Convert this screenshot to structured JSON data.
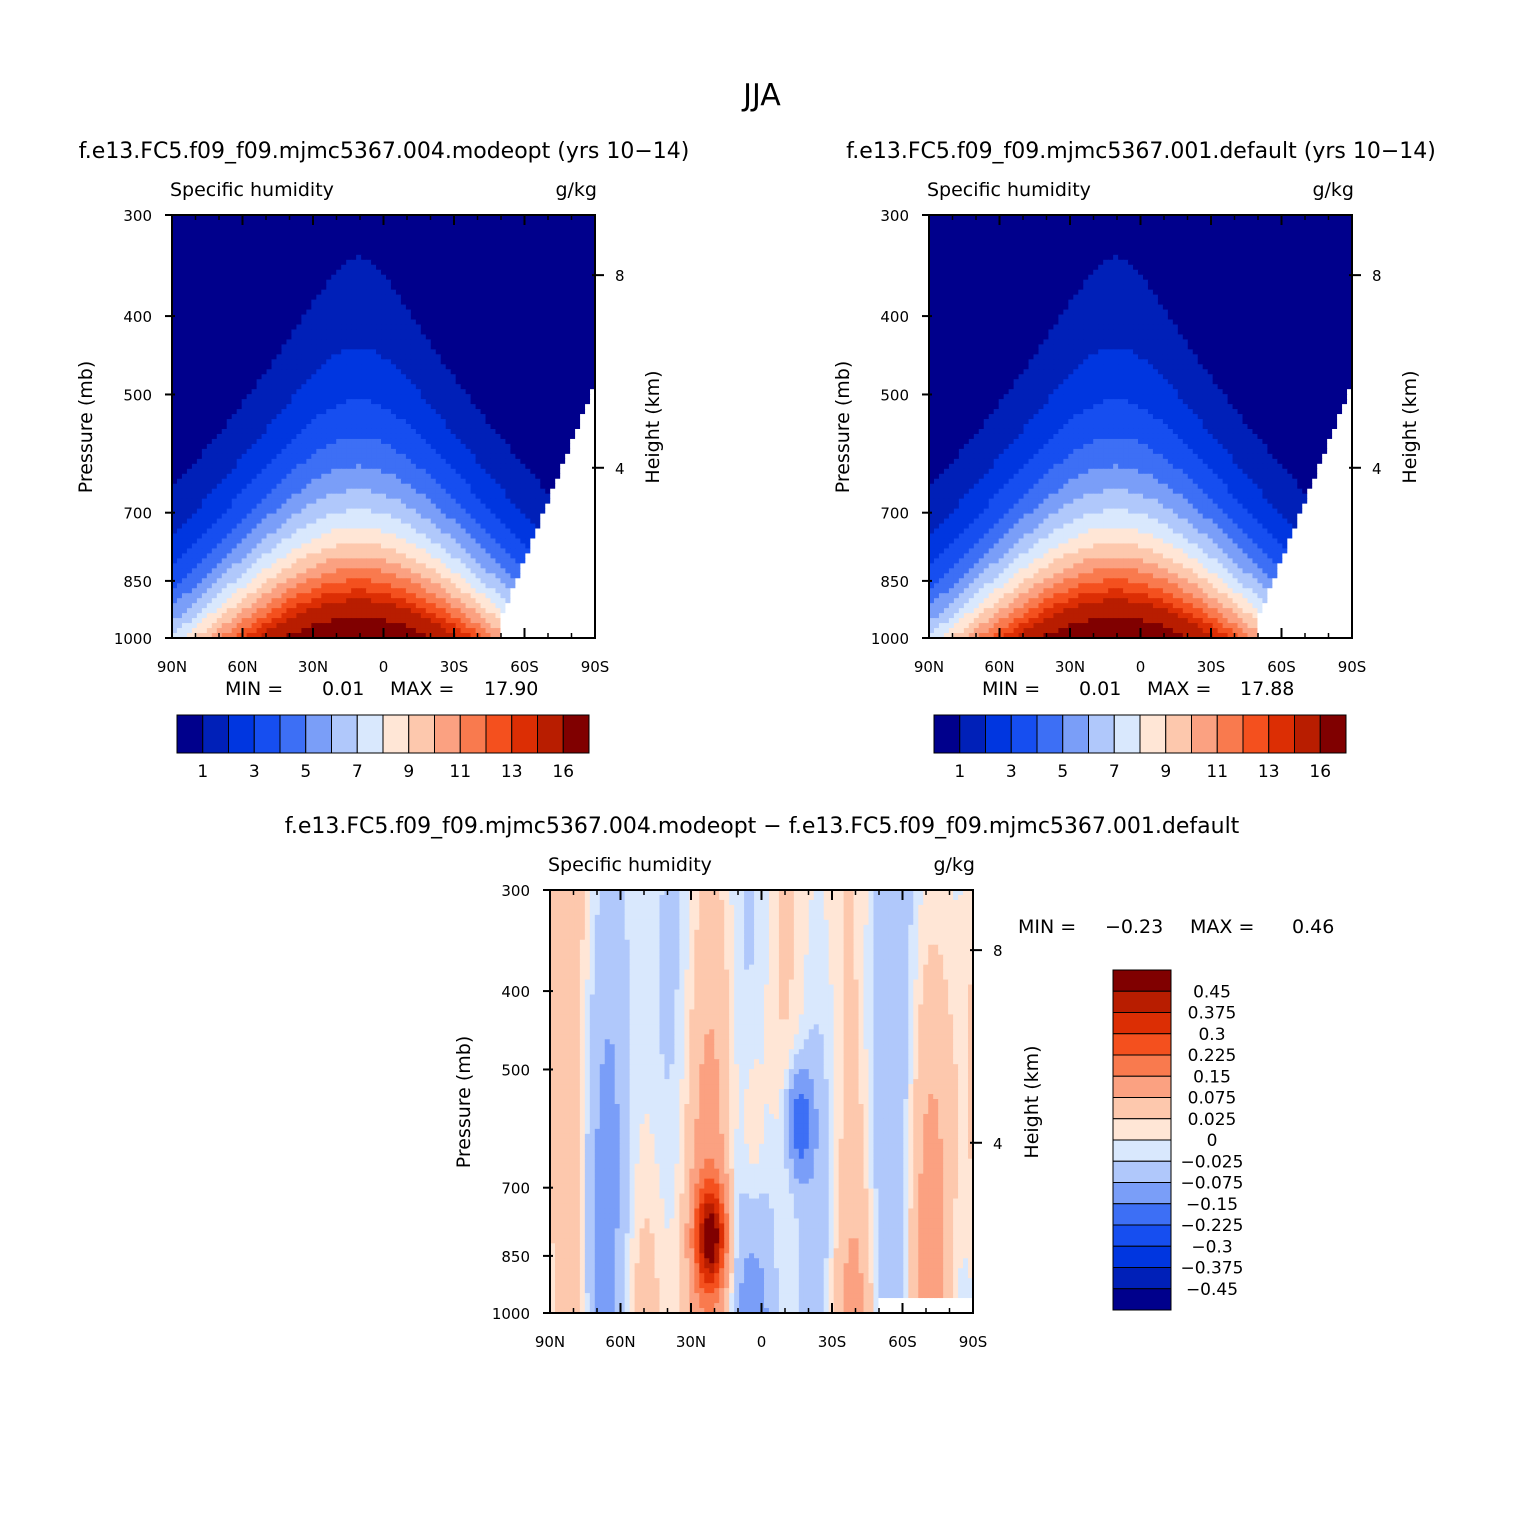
{
  "figure": {
    "season": "JJA",
    "accent_colors": {
      "dark_blue": "#00008c",
      "dark_red": "#800000",
      "white": "#ffffff"
    }
  },
  "chart_data": [
    {
      "type": "heatmap",
      "title": "f.e13.FC5.f09_f09.mjmc5367.004.modeopt (yrs 10−14)",
      "left_label": "Specific humidity",
      "units": "g/kg",
      "ylabel": "Pressure (mb)",
      "ylabel_right": "Height (km)",
      "x_ticks": [
        "90N",
        "60N",
        "30N",
        "0",
        "30S",
        "60S",
        "90S"
      ],
      "y_ticks": [
        "300",
        "400",
        "500",
        "700",
        "850",
        "1000"
      ],
      "y_ticks_right": [
        "8",
        "4"
      ],
      "min_label": "MIN =",
      "min_value": "0.01",
      "max_label": "MAX =",
      "max_value": "17.90",
      "x_range": [
        "90N",
        "90S"
      ],
      "y_range": [
        1000,
        300
      ],
      "y_scale": "log",
      "levels": [
        1,
        2,
        3,
        4,
        5,
        6,
        7,
        8,
        9,
        10,
        11,
        12,
        13,
        14,
        16
      ],
      "colorbar_labels": [
        "1",
        "3",
        "5",
        "7",
        "9",
        "11",
        "13",
        "16"
      ],
      "colors": [
        "#00008c",
        "#0020b8",
        "#0036e0",
        "#164ef0",
        "#3d6ff5",
        "#7a9ef8",
        "#b0c8fb",
        "#d9e8fd",
        "#ffe6d6",
        "#fdc8ad",
        "#fba181",
        "#f97a4e",
        "#f4501e",
        "#dc2e04",
        "#b81d00",
        "#800000"
      ]
    },
    {
      "type": "heatmap",
      "title": "f.e13.FC5.f09_f09.mjmc5367.001.default (yrs 10−14)",
      "left_label": "Specific humidity",
      "units": "g/kg",
      "ylabel": "Pressure (mb)",
      "ylabel_right": "Height (km)",
      "x_ticks": [
        "90N",
        "60N",
        "30N",
        "0",
        "30S",
        "60S",
        "90S"
      ],
      "y_ticks": [
        "300",
        "400",
        "500",
        "700",
        "850",
        "1000"
      ],
      "y_ticks_right": [
        "8",
        "4"
      ],
      "min_label": "MIN =",
      "min_value": "0.01",
      "max_label": "MAX =",
      "max_value": "17.88",
      "x_range": [
        "90N",
        "90S"
      ],
      "y_range": [
        1000,
        300
      ],
      "y_scale": "log",
      "levels": [
        1,
        2,
        3,
        4,
        5,
        6,
        7,
        8,
        9,
        10,
        11,
        12,
        13,
        14,
        16
      ],
      "colorbar_labels": [
        "1",
        "3",
        "5",
        "7",
        "9",
        "11",
        "13",
        "16"
      ],
      "colors": [
        "#00008c",
        "#0020b8",
        "#0036e0",
        "#164ef0",
        "#3d6ff5",
        "#7a9ef8",
        "#b0c8fb",
        "#d9e8fd",
        "#ffe6d6",
        "#fdc8ad",
        "#fba181",
        "#f97a4e",
        "#f4501e",
        "#dc2e04",
        "#b81d00",
        "#800000"
      ]
    },
    {
      "type": "heatmap",
      "title": "f.e13.FC5.f09_f09.mjmc5367.004.modeopt − f.e13.FC5.f09_f09.mjmc5367.001.default",
      "left_label": "Specific humidity",
      "units": "g/kg",
      "ylabel": "Pressure (mb)",
      "ylabel_right": "Height (km)",
      "x_ticks": [
        "90N",
        "60N",
        "30N",
        "0",
        "30S",
        "60S",
        "90S"
      ],
      "y_ticks": [
        "300",
        "400",
        "500",
        "700",
        "850",
        "1000"
      ],
      "y_ticks_right": [
        "8",
        "4"
      ],
      "min_label": "MIN =",
      "min_value": "−0.23",
      "max_label": "MAX =",
      "max_value": "0.46",
      "x_range": [
        "90N",
        "90S"
      ],
      "y_range": [
        1000,
        300
      ],
      "y_scale": "log",
      "colorbar_labels": [
        "0.45",
        "0.375",
        "0.3",
        "0.225",
        "0.15",
        "0.075",
        "0.025",
        "0",
        "−0.025",
        "−0.075",
        "−0.15",
        "−0.225",
        "−0.3",
        "−0.375",
        "−0.45"
      ],
      "colors": [
        "#800000",
        "#b81d00",
        "#dc2e04",
        "#f4501e",
        "#f97a4e",
        "#fba181",
        "#fdc8ad",
        "#ffe6d6",
        "#d9e8fd",
        "#b0c8fb",
        "#7a9ef8",
        "#3d6ff5",
        "#164ef0",
        "#0036e0",
        "#0020b8",
        "#00008c"
      ]
    }
  ]
}
